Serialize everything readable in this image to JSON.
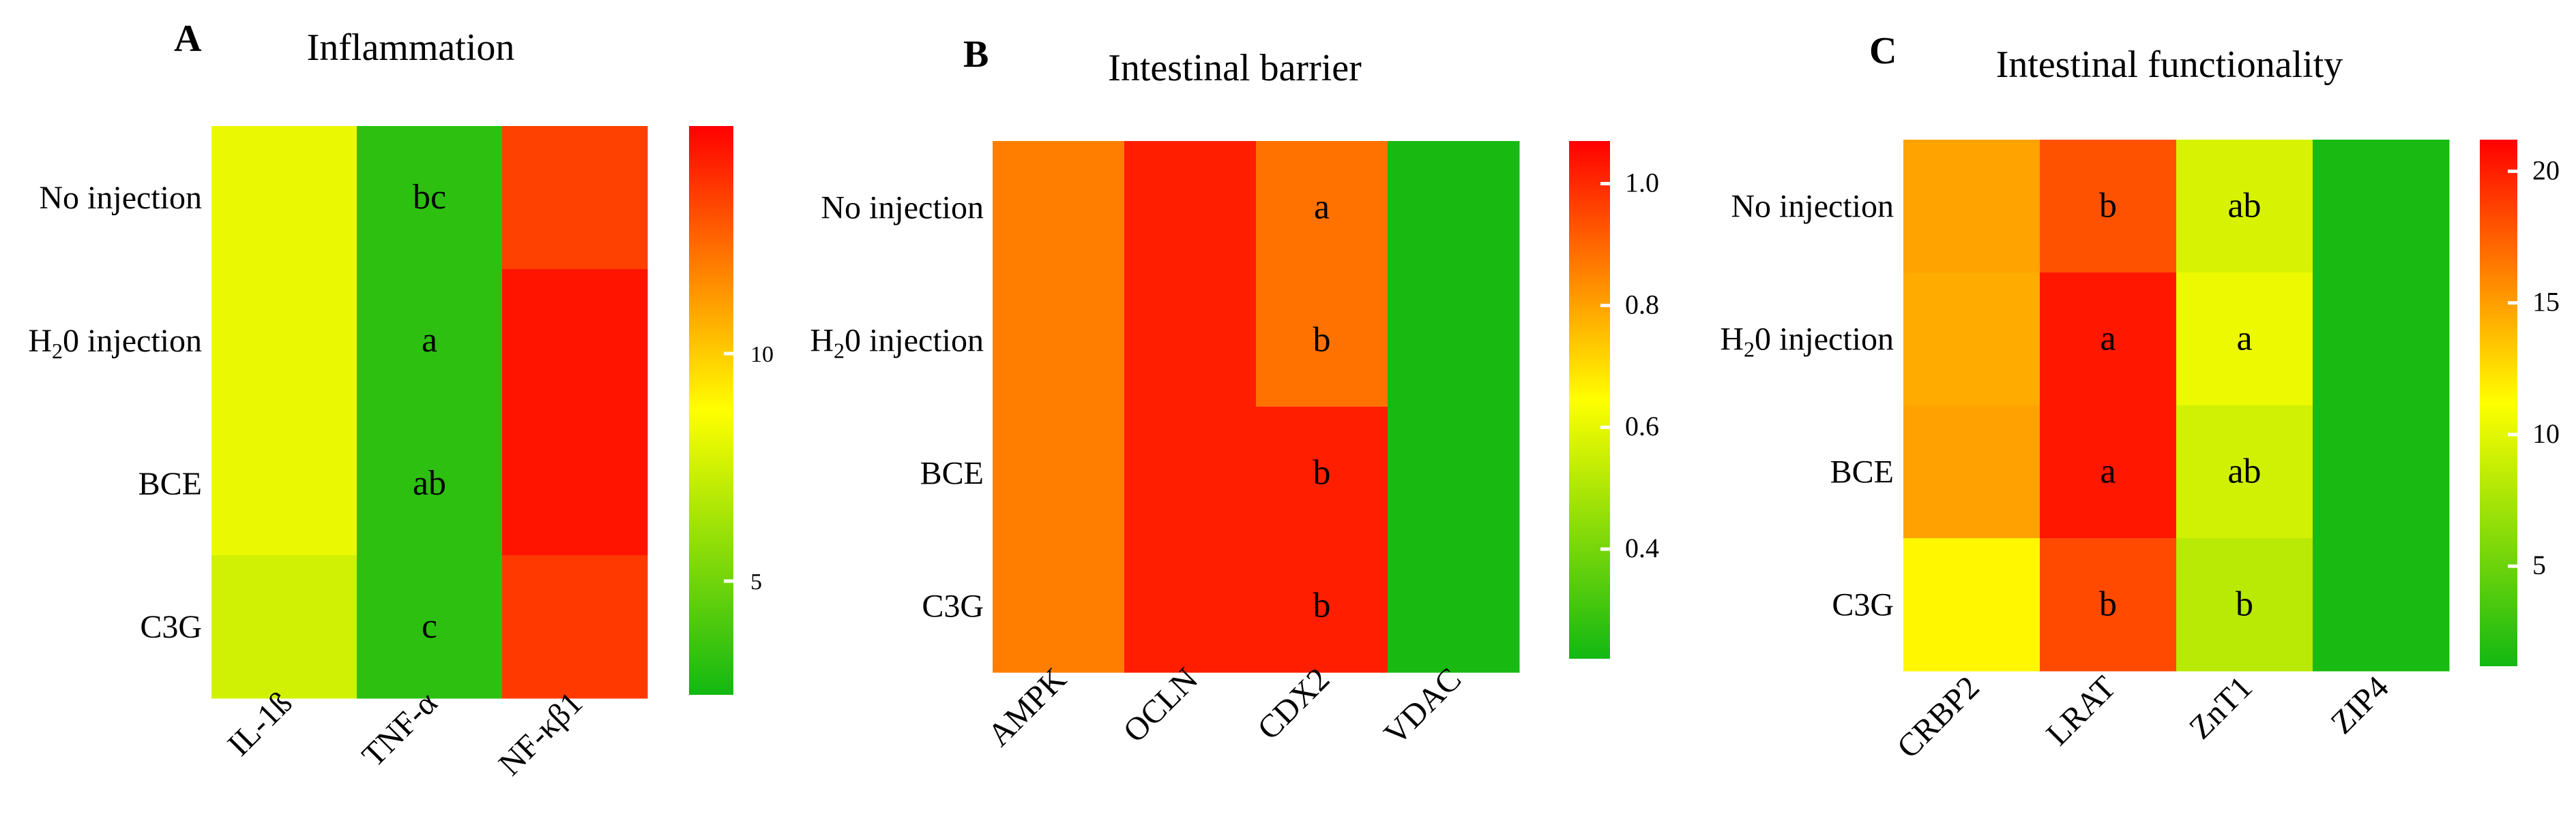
{
  "figure_caption": "",
  "chart_data": [
    {
      "type": "heatmap",
      "panel_letter": "A",
      "title": "Inflammation",
      "rows": [
        "No injection",
        "H20 injection",
        "BCE",
        "C3G"
      ],
      "row_label_parts": [
        {
          "main": "No injection"
        },
        {
          "pre": "H",
          "sub": "2",
          "post": "0 injection"
        },
        {
          "main": "BCE"
        },
        {
          "main": "C3G"
        }
      ],
      "columns": [
        "IL-1ß",
        "TNF-α",
        "NF-κβ1"
      ],
      "values": [
        [
          8.2,
          3.2,
          13.4
        ],
        [
          8.2,
          3.2,
          14.5
        ],
        [
          8.2,
          3.2,
          14.5
        ],
        [
          7.5,
          3.2,
          13.6
        ]
      ],
      "annotations": [
        [
          "",
          "bc",
          ""
        ],
        [
          "",
          "a",
          ""
        ],
        [
          "",
          "ab",
          ""
        ],
        [
          "",
          "c",
          ""
        ]
      ],
      "colorbar": {
        "min": 2.5,
        "max": 15,
        "ticks": [
          5,
          10
        ],
        "tick_labels": [
          "5",
          "10"
        ]
      },
      "colors": [
        "#12b812",
        "#ffff00",
        "#ff0000"
      ]
    },
    {
      "type": "heatmap",
      "panel_letter": "B",
      "title": "Intestinal barrier",
      "rows": [
        "No injection",
        "H20 injection",
        "BCE",
        "C3G"
      ],
      "row_label_parts": [
        {
          "main": "No injection"
        },
        {
          "pre": "H",
          "sub": "2",
          "post": "0 injection"
        },
        {
          "main": "BCE"
        },
        {
          "main": "C3G"
        }
      ],
      "columns": [
        "AMPK",
        "OCLN",
        "CDX2",
        "VDAC"
      ],
      "values": [
        [
          0.86,
          1.02,
          0.88,
          0.23
        ],
        [
          0.86,
          1.02,
          0.88,
          0.23
        ],
        [
          0.86,
          1.02,
          1.02,
          0.23
        ],
        [
          0.86,
          1.02,
          1.02,
          0.23
        ]
      ],
      "annotations": [
        [
          "",
          "",
          "a",
          ""
        ],
        [
          "",
          "",
          "b",
          ""
        ],
        [
          "",
          "",
          "b",
          ""
        ],
        [
          "",
          "",
          "b",
          ""
        ]
      ],
      "colorbar": {
        "min": 0.22,
        "max": 1.07,
        "ticks": [
          0.4,
          0.6,
          0.8,
          1.0
        ],
        "tick_labels": [
          "0.4",
          "0.6",
          "0.8",
          "1.0"
        ]
      },
      "colors": [
        "#12b812",
        "#ffff00",
        "#ff0000"
      ]
    },
    {
      "type": "heatmap",
      "panel_letter": "C",
      "title": "Intestinal functionality",
      "rows": [
        "No injection",
        "H20 injection",
        "BCE",
        "C3G"
      ],
      "row_label_parts": [
        {
          "main": "No injection"
        },
        {
          "pre": "H",
          "sub": "2",
          "post": "0 injection"
        },
        {
          "main": "BCE"
        },
        {
          "main": "C3G"
        }
      ],
      "columns": [
        "CRBP2",
        "LRAT",
        "ZnT1",
        "ZIP4"
      ],
      "values": [
        [
          14.8,
          18.0,
          9.5,
          1.5
        ],
        [
          14.5,
          20.3,
          10.4,
          1.5
        ],
        [
          14.9,
          20.3,
          9.2,
          1.5
        ],
        [
          11.5,
          18.3,
          8.2,
          1.5
        ]
      ],
      "annotations": [
        [
          "",
          "b",
          "ab",
          ""
        ],
        [
          "",
          "a",
          "a",
          ""
        ],
        [
          "",
          "a",
          "ab",
          ""
        ],
        [
          "",
          "b",
          "b",
          ""
        ]
      ],
      "colorbar": {
        "min": 1.2,
        "max": 21.2,
        "ticks": [
          5,
          10,
          15,
          20
        ],
        "tick_labels": [
          "5",
          "10",
          "15",
          "20"
        ]
      },
      "colors": [
        "#12b812",
        "#ffff00",
        "#ff0000"
      ]
    }
  ]
}
